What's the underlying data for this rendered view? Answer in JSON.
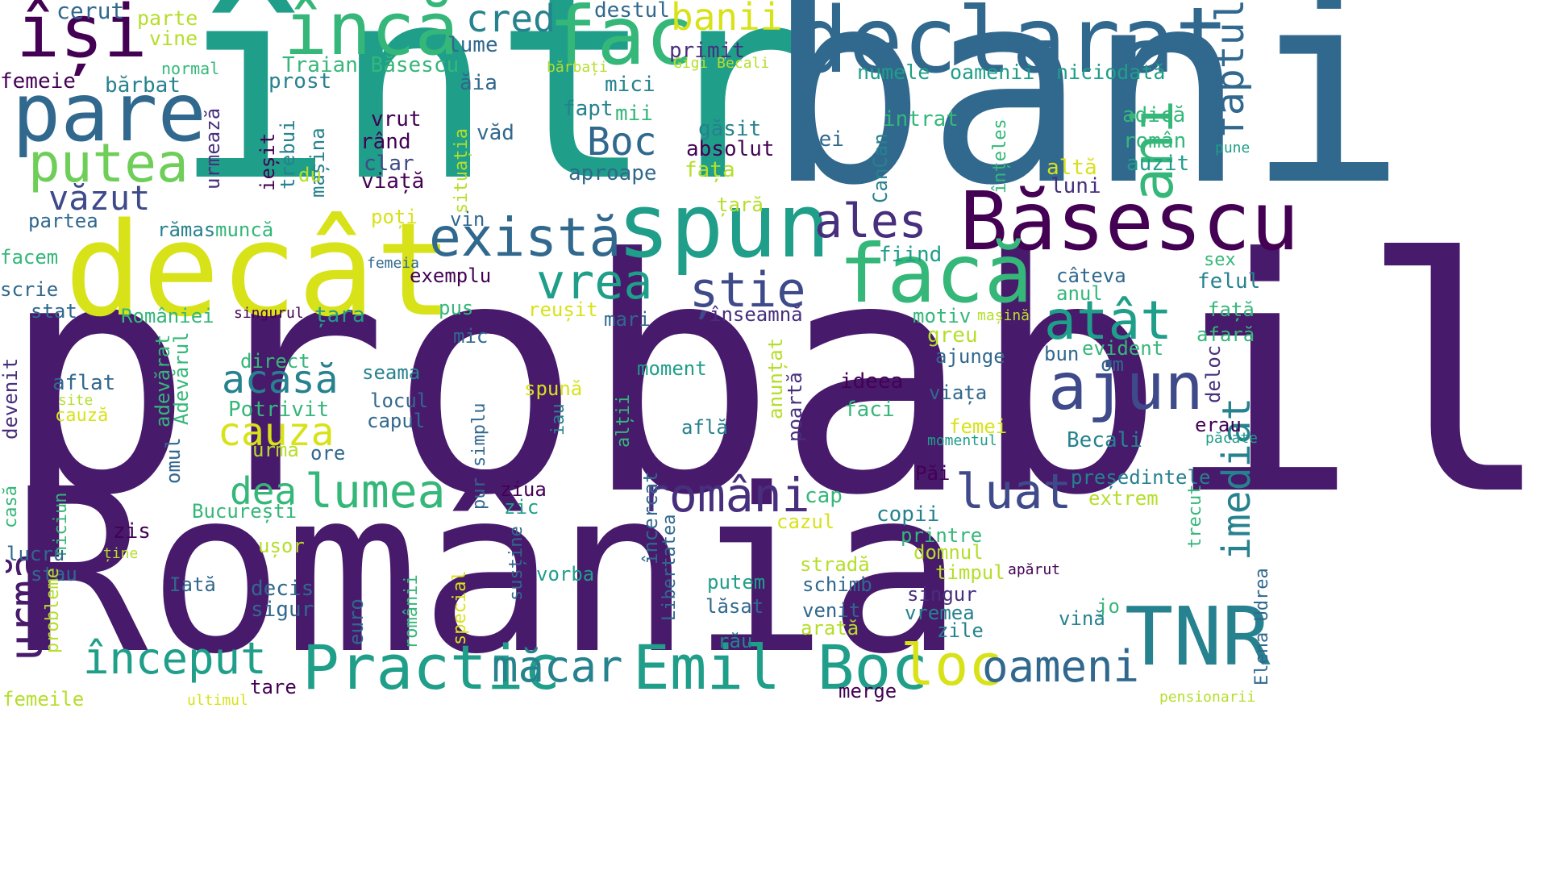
{
  "colors": {
    "background": "#ffffff",
    "palette": {
      "dark_purple": "#440154",
      "purple": "#481a6c",
      "indigo": "#472f7d",
      "slate": "#3e4a89",
      "blue": "#31688e",
      "steel": "#26828e",
      "teal": "#1f9e89",
      "green_teal": "#35b779",
      "green": "#6ece58",
      "lime": "#b5de2b",
      "yellow": "#d8e219"
    }
  },
  "words": [
    {
      "text": "probabil",
      "color": "#481a6c"
    },
    {
      "text": "România",
      "color": "#481a6c"
    },
    {
      "text": "într",
      "color": "#1f9e89"
    },
    {
      "text": "bani",
      "color": "#31688e"
    },
    {
      "text": "decât",
      "color": "#d8e219"
    },
    {
      "text": "declarat",
      "color": "#31688e"
    },
    {
      "text": "Băsescu",
      "color": "#440154"
    },
    {
      "text": "spun",
      "color": "#1f9e89"
    },
    {
      "text": "facă",
      "color": "#35b779"
    },
    {
      "text": "fac",
      "color": "#35b779"
    },
    {
      "text": "pare",
      "color": "#31688e"
    },
    {
      "text": "încă",
      "color": "#35b779"
    },
    {
      "text": "își",
      "color": "#440154"
    },
    {
      "text": "ani",
      "color": "#35b779"
    },
    {
      "text": "TNR",
      "color": "#26828e"
    },
    {
      "text": "Practic",
      "color": "#1f9e89"
    },
    {
      "text": "Emil Boc",
      "color": "#1f9e89"
    },
    {
      "text": "ajun",
      "color": "#3e4a89"
    },
    {
      "text": "putea",
      "color": "#6ece58"
    },
    {
      "text": "există",
      "color": "#31688e"
    },
    {
      "text": "atât",
      "color": "#1f9e89"
    },
    {
      "text": "ales",
      "color": "#472f7d"
    },
    {
      "text": "vrea",
      "color": "#1f9e89"
    },
    {
      "text": "știe",
      "color": "#3e4a89"
    },
    {
      "text": "români",
      "color": "#472f7d"
    },
    {
      "text": "lumea",
      "color": "#35b779"
    },
    {
      "text": "luat",
      "color": "#3e4a89"
    },
    {
      "text": "loc",
      "color": "#d8e219"
    },
    {
      "text": "oameni",
      "color": "#31688e"
    },
    {
      "text": "început",
      "color": "#1f9e89"
    },
    {
      "text": "măcar",
      "color": "#26828e"
    },
    {
      "text": "urmă",
      "color": "#481a6c"
    },
    {
      "text": "imediat",
      "color": "#26828e"
    },
    {
      "text": "faptul",
      "color": "#31688e"
    },
    {
      "text": "acasă",
      "color": "#26828e"
    },
    {
      "text": "cauza",
      "color": "#d8e219"
    },
    {
      "text": "cred",
      "color": "#26828e"
    },
    {
      "text": "banii",
      "color": "#d8e219"
    },
    {
      "text": "Boc",
      "color": "#31688e"
    },
    {
      "text": "văzut",
      "color": "#3e4a89"
    },
    {
      "text": "dea",
      "color": "#35b779"
    },
    {
      "text": "cerut",
      "color": "#31688e"
    },
    {
      "text": "parte",
      "color": "#b5de2b"
    },
    {
      "text": "vine",
      "color": "#b5de2b"
    },
    {
      "text": "destul",
      "color": "#31688e"
    },
    {
      "text": "lume",
      "color": "#31688e"
    },
    {
      "text": "primit",
      "color": "#472f7d"
    },
    {
      "text": "Gigi Becali",
      "color": "#b5de2b"
    },
    {
      "text": "normal",
      "color": "#35b779"
    },
    {
      "text": "Traian Băsescu",
      "color": "#35b779"
    },
    {
      "text": "bărbați",
      "color": "#b5de2b"
    },
    {
      "text": "numele",
      "color": "#1f9e89"
    },
    {
      "text": "oamenii",
      "color": "#1f9e89"
    },
    {
      "text": "niciodată",
      "color": "#1f9e89"
    },
    {
      "text": "femeie",
      "color": "#440154"
    },
    {
      "text": "bărbat",
      "color": "#26828e"
    },
    {
      "text": "prost",
      "color": "#26828e"
    },
    {
      "text": "ăia",
      "color": "#31688e"
    },
    {
      "text": "mici",
      "color": "#26828e"
    },
    {
      "text": "fapt",
      "color": "#26828e"
    },
    {
      "text": "mii",
      "color": "#35b779"
    },
    {
      "text": "găsit",
      "color": "#26828e"
    },
    {
      "text": "intrat",
      "color": "#35b779"
    },
    {
      "text": "adică",
      "color": "#35b779"
    },
    {
      "text": "român",
      "color": "#35b779"
    },
    {
      "text": "pune",
      "color": "#1f9e89"
    },
    {
      "text": "auzit",
      "color": "#1f9e89"
    },
    {
      "text": "altă",
      "color": "#d8e219"
    },
    {
      "text": "luni",
      "color": "#472f7d"
    },
    {
      "text": "înțeles",
      "color": "#35b779"
    },
    {
      "text": "vrut",
      "color": "#440154"
    },
    {
      "text": "rând",
      "color": "#440154"
    },
    {
      "text": "clar",
      "color": "#3e4a89"
    },
    {
      "text": "viață",
      "color": "#440154"
    },
    {
      "text": "văd",
      "color": "#31688e"
    },
    {
      "text": "absolut",
      "color": "#440154"
    },
    {
      "text": "lei",
      "color": "#31688e"
    },
    {
      "text": "fața",
      "color": "#b5de2b"
    },
    {
      "text": "aproape",
      "color": "#31688e"
    },
    {
      "text": "țară",
      "color": "#b5de2b"
    },
    {
      "text": "urmează",
      "color": "#472f7d"
    },
    {
      "text": "ieșit",
      "color": "#440154"
    },
    {
      "text": "trebui",
      "color": "#26828e"
    },
    {
      "text": "mașina",
      "color": "#26828e"
    },
    {
      "text": "du",
      "color": "#b5de2b"
    },
    {
      "text": "situația",
      "color": "#b5de2b"
    },
    {
      "text": "CanCan",
      "color": "#26828e"
    },
    {
      "text": "partea",
      "color": "#31688e"
    },
    {
      "text": "rămas",
      "color": "#26828e"
    },
    {
      "text": "muncă",
      "color": "#35b779"
    },
    {
      "text": "poți",
      "color": "#d8e219"
    },
    {
      "text": "vin",
      "color": "#31688e"
    },
    {
      "text": "facem",
      "color": "#35b779"
    },
    {
      "text": "femeia",
      "color": "#31688e"
    },
    {
      "text": "fiind",
      "color": "#1f9e89"
    },
    {
      "text": "sex",
      "color": "#35b779"
    },
    {
      "text": "câteva",
      "color": "#31688e"
    },
    {
      "text": "anul",
      "color": "#35b779"
    },
    {
      "text": "felul",
      "color": "#26828e"
    },
    {
      "text": "exemplu",
      "color": "#440154"
    },
    {
      "text": "scrie",
      "color": "#31688e"
    },
    {
      "text": "stat",
      "color": "#31688e"
    },
    {
      "text": "României",
      "color": "#35b779"
    },
    {
      "text": "singurul",
      "color": "#440154"
    },
    {
      "text": "țara",
      "color": "#1f9e89"
    },
    {
      "text": "pus",
      "color": "#35b779"
    },
    {
      "text": "reușit",
      "color": "#d8e219"
    },
    {
      "text": "mari",
      "color": "#31688e"
    },
    {
      "text": "înseamnă",
      "color": "#472f7d"
    },
    {
      "text": "motiv",
      "color": "#35b779"
    },
    {
      "text": "mașină",
      "color": "#b5de2b"
    },
    {
      "text": "față",
      "color": "#35b779"
    },
    {
      "text": "afară",
      "color": "#35b779"
    },
    {
      "text": "mic",
      "color": "#31688e"
    },
    {
      "text": "greu",
      "color": "#b5de2b"
    },
    {
      "text": "evident",
      "color": "#35b779"
    },
    {
      "text": "ajunge",
      "color": "#31688e"
    },
    {
      "text": "bun",
      "color": "#31688e"
    },
    {
      "text": "om",
      "color": "#31688e"
    },
    {
      "text": "deloc",
      "color": "#472f7d"
    },
    {
      "text": "direct",
      "color": "#35b779"
    },
    {
      "text": "adevărat",
      "color": "#35b779"
    },
    {
      "text": "Adevărul",
      "color": "#35b779"
    },
    {
      "text": "anunțat",
      "color": "#b5de2b"
    },
    {
      "text": "seama",
      "color": "#26828e"
    },
    {
      "text": "moment",
      "color": "#1f9e89"
    },
    {
      "text": "ideea",
      "color": "#440154"
    },
    {
      "text": "viața",
      "color": "#31688e"
    },
    {
      "text": "aflat",
      "color": "#31688e"
    },
    {
      "text": "site",
      "color": "#b5de2b"
    },
    {
      "text": "cauză",
      "color": "#d8e219"
    },
    {
      "text": "devenit",
      "color": "#472f7d"
    },
    {
      "text": "Potrivit",
      "color": "#35b779"
    },
    {
      "text": "locul",
      "color": "#31688e"
    },
    {
      "text": "capul",
      "color": "#31688e"
    },
    {
      "text": "spună",
      "color": "#d8e219"
    },
    {
      "text": "iau",
      "color": "#26828e"
    },
    {
      "text": "alții",
      "color": "#35b779"
    },
    {
      "text": "află",
      "color": "#26828e"
    },
    {
      "text": "poartă",
      "color": "#472f7d"
    },
    {
      "text": "faci",
      "color": "#35b779"
    },
    {
      "text": "femei",
      "color": "#d8e219"
    },
    {
      "text": "erau",
      "color": "#440154"
    },
    {
      "text": "momentul",
      "color": "#1f9e89"
    },
    {
      "text": "Becali",
      "color": "#26828e"
    },
    {
      "text": "păcate",
      "color": "#1f9e89"
    },
    {
      "text": "omul",
      "color": "#31688e"
    },
    {
      "text": "ore",
      "color": "#31688e"
    },
    {
      "text": "urma",
      "color": "#b5de2b"
    },
    {
      "text": "pur simplu",
      "color": "#31688e"
    },
    {
      "text": "Păi",
      "color": "#440154"
    },
    {
      "text": "președintele",
      "color": "#26828e"
    },
    {
      "text": "extrem",
      "color": "#b5de2b"
    },
    {
      "text": "casă",
      "color": "#35b779"
    },
    {
      "text": "niciun",
      "color": "#35b779"
    },
    {
      "text": "zis",
      "color": "#440154"
    },
    {
      "text": "București",
      "color": "#35b779"
    },
    {
      "text": "ziua",
      "color": "#440154"
    },
    {
      "text": "zic",
      "color": "#1f9e89"
    },
    {
      "text": "cap",
      "color": "#35b779"
    },
    {
      "text": "cazul",
      "color": "#d8e219"
    },
    {
      "text": "copii",
      "color": "#26828e"
    },
    {
      "text": "printre",
      "color": "#35b779"
    },
    {
      "text": "trecut",
      "color": "#35b779"
    },
    {
      "text": "lucru",
      "color": "#31688e"
    },
    {
      "text": "ține",
      "color": "#b5de2b"
    },
    {
      "text": "ușor",
      "color": "#b5de2b"
    },
    {
      "text": "domnul",
      "color": "#b5de2b"
    },
    {
      "text": "încercat",
      "color": "#31688e"
    },
    {
      "text": "Libertatea",
      "color": "#31688e"
    },
    {
      "text": "stradă",
      "color": "#b5de2b"
    },
    {
      "text": "timpul",
      "color": "#b5de2b"
    },
    {
      "text": "apărut",
      "color": "#440154"
    },
    {
      "text": "stau",
      "color": "#31688e"
    },
    {
      "text": "Iată",
      "color": "#31688e"
    },
    {
      "text": "decis",
      "color": "#31688e"
    },
    {
      "text": "sigur",
      "color": "#31688e"
    },
    {
      "text": "vorba",
      "color": "#1f9e89"
    },
    {
      "text": "putem",
      "color": "#1f9e89"
    },
    {
      "text": "schimb",
      "color": "#31688e"
    },
    {
      "text": "singur",
      "color": "#472f7d"
    },
    {
      "text": "vremea",
      "color": "#26828e"
    },
    {
      "text": "zile",
      "color": "#26828e"
    },
    {
      "text": "jo",
      "color": "#35b779"
    },
    {
      "text": "Elena Udrea",
      "color": "#31688e"
    },
    {
      "text": "probleme",
      "color": "#b5de2b"
    },
    {
      "text": "euro",
      "color": "#31688e"
    },
    {
      "text": "românii",
      "color": "#35b779"
    },
    {
      "text": "special",
      "color": "#d8e219"
    },
    {
      "text": "susține",
      "color": "#31688e"
    },
    {
      "text": "lăsat",
      "color": "#31688e"
    },
    {
      "text": "venit",
      "color": "#31688e"
    },
    {
      "text": "arată",
      "color": "#b5de2b"
    },
    {
      "text": "vină",
      "color": "#26828e"
    },
    {
      "text": "rău",
      "color": "#26828e"
    },
    {
      "text": "femeile",
      "color": "#b5de2b"
    },
    {
      "text": "ultimul",
      "color": "#d8e219"
    },
    {
      "text": "tare",
      "color": "#440154"
    },
    {
      "text": "merge",
      "color": "#440154"
    },
    {
      "text": "pensionarii",
      "color": "#b5de2b"
    }
  ]
}
